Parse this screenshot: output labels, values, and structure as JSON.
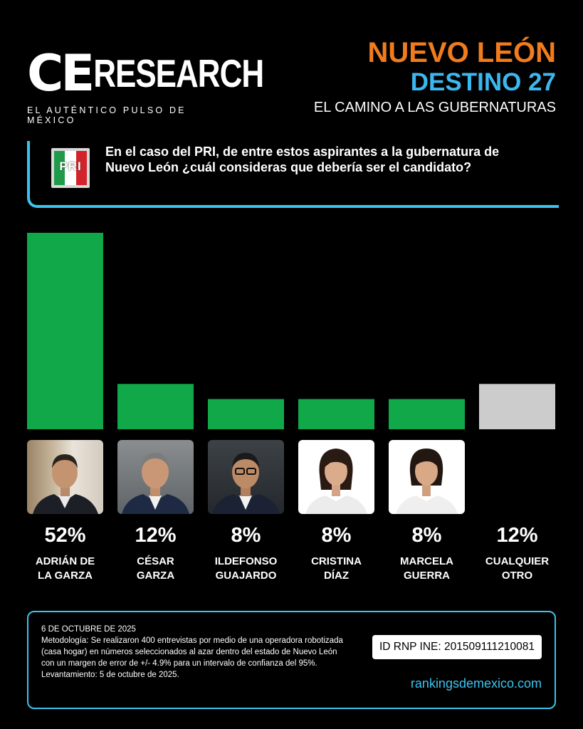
{
  "brand": {
    "ce": "CE",
    "research": "RESEARCH",
    "tagline": "EL AUTÉNTICO PULSO DE MÉXICO"
  },
  "header": {
    "state": "NUEVO LEÓN",
    "destino": "DESTINO 27",
    "subtitle": "EL CAMINO A LAS GUBERNATURAS"
  },
  "question": {
    "party_logo_text": "PRI",
    "text": "En el caso del PRI, de entre estos aspirantes a la gubernatura de Nuevo León ¿cuál consideras que debería ser el candidato?"
  },
  "chart_data": {
    "type": "bar",
    "title": "",
    "categories": [
      "ADRIÁN DE LA GARZA",
      "CÉSAR GARZA",
      "ILDEFONSO GUAJARDO",
      "CRISTINA DÍAZ",
      "MARCELA GUERRA",
      "CUALQUIER OTRO"
    ],
    "values": [
      52,
      12,
      8,
      8,
      8,
      12
    ],
    "value_labels": [
      "52%",
      "12%",
      "8%",
      "8%",
      "8%",
      "12%"
    ],
    "name_lines": [
      "ADRIÁN DE\nLA GARZA",
      "CÉSAR\nGARZA",
      "ILDEFONSO\nGUAJARDO",
      "CRISTINA\nDÍAZ",
      "MARCELA\nGUERRA",
      "CUALQUIER\nOTRO"
    ],
    "colors": [
      "#11a84a",
      "#11a84a",
      "#11a84a",
      "#11a84a",
      "#11a84a",
      "#cccccc"
    ],
    "ylim": [
      0,
      52
    ],
    "grid": false,
    "legend": "none"
  },
  "footer": {
    "date": "6 DE OCTUBRE DE 2025",
    "methodology": "Metodología: Se realizaron 400 entrevistas por medio de una operadora robotizada (casa hogar) en números seleccionados al azar dentro del estado de Nuevo León con un margen de error de +/- 4.9% para un intervalo de confianza del 95%.",
    "survey_date": "Levantamiento: 5 de octubre de 2025.",
    "rnp": "ID RNP INE: 201509111210081",
    "website": "rankingsdemexico.com"
  },
  "colors": {
    "accent_blue": "#3cc4f0",
    "accent_orange": "#f07c1e",
    "bar_green": "#11a84a",
    "bar_gray": "#cccccc"
  }
}
